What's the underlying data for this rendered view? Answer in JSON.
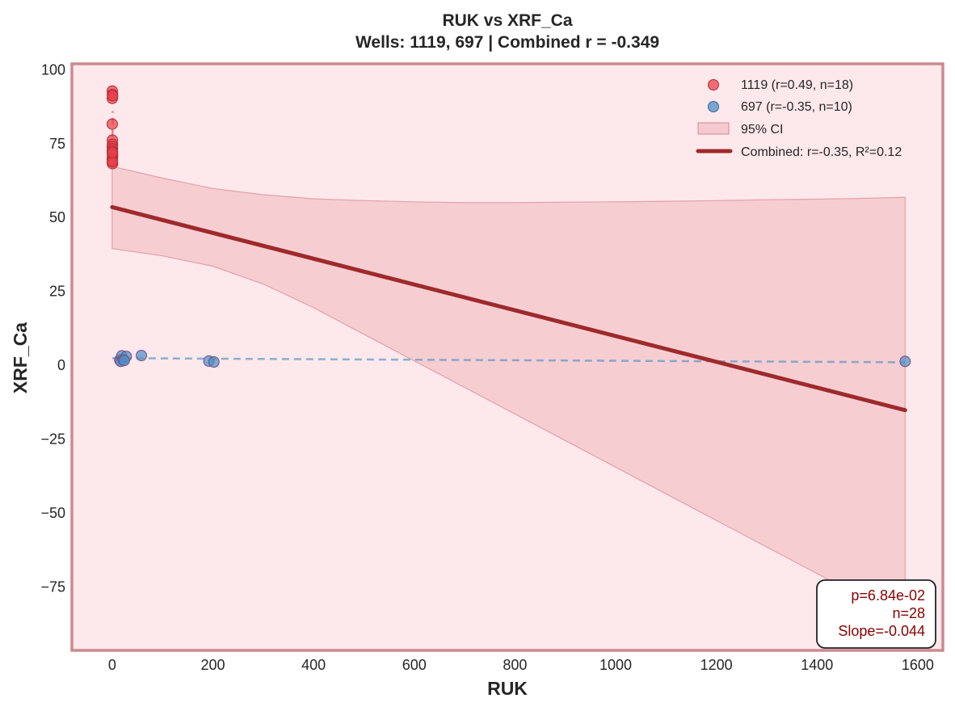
{
  "chart_data": {
    "type": "scatter",
    "title": "RUK vs XRF_Ca",
    "subtitle": "Wells: 1119, 697 | Combined r = -0.349",
    "xlabel": "RUK",
    "ylabel": "XRF_Ca",
    "xlim": [
      -80,
      1650
    ],
    "ylim": [
      -96.5,
      102
    ],
    "xticks": [
      0,
      200,
      400,
      600,
      800,
      1000,
      1200,
      1400,
      1600
    ],
    "yticks": [
      100,
      75,
      50,
      25,
      0,
      -25,
      -50,
      -75
    ],
    "ytick_labels": [
      "100",
      "75",
      "50",
      "25",
      "0",
      "−25",
      "−50",
      "−75"
    ],
    "grid": false,
    "legend_position": "top-right",
    "series": [
      {
        "name": "1119 (r=0.49, n=18)",
        "color": "#e8434b",
        "points": [
          [
            0.3,
            92.8
          ],
          [
            0.6,
            91.6
          ],
          [
            0.2,
            90.3
          ],
          [
            0.8,
            91.2
          ],
          [
            0.1,
            81.6
          ],
          [
            0.4,
            76.2
          ],
          [
            0.5,
            74.8
          ],
          [
            0.3,
            74.0
          ],
          [
            0.6,
            73.2
          ],
          [
            0.2,
            72.5
          ],
          [
            0.4,
            71.6
          ],
          [
            0.7,
            71.0
          ],
          [
            0.5,
            70.3
          ],
          [
            0.2,
            69.6
          ],
          [
            0.3,
            68.8
          ],
          [
            0.6,
            68.2
          ],
          [
            0.4,
            69.0
          ],
          [
            0.5,
            72.0
          ]
        ],
        "trend": {
          "x": [
            0,
            1.2
          ],
          "y": [
            69,
            86
          ]
        }
      },
      {
        "name": "697 (r=-0.35, n=10)",
        "color": "#4e8fc8",
        "points": [
          [
            15,
            1.8
          ],
          [
            17,
            1.3
          ],
          [
            19,
            3.2
          ],
          [
            22,
            1.9
          ],
          [
            28,
            3.0
          ],
          [
            58,
            3.3
          ],
          [
            192,
            1.4
          ],
          [
            202,
            1.1
          ],
          [
            1575,
            1.3
          ],
          [
            24,
            1.6
          ]
        ],
        "trend": {
          "x": [
            0,
            1575
          ],
          "y": [
            2.4,
            1.0
          ]
        }
      }
    ],
    "ci": {
      "name": "95% CI",
      "color": "#e9a3ac",
      "x": [
        0,
        100,
        200,
        300,
        400,
        500,
        600,
        700,
        800,
        900,
        1000,
        1100,
        1200,
        1300,
        1400,
        1500,
        1575
      ],
      "upper": [
        67.3,
        63.3,
        59.8,
        57.7,
        56.3,
        55.7,
        55.3,
        55.0,
        55.0,
        55.2,
        55.3,
        55.5,
        55.7,
        56.0,
        56.2,
        56.5,
        56.8
      ],
      "lower": [
        39.5,
        37.0,
        33.5,
        27.5,
        19.5,
        10.5,
        1.5,
        -7.5,
        -16.5,
        -25.5,
        -34.5,
        -43.5,
        -52.5,
        -61.5,
        -70.5,
        -79.5,
        -86.0
      ]
    },
    "combined_fit": {
      "name": "Combined: r=-0.35, R²=0.12",
      "color": "#9e2a2b",
      "x": [
        0,
        1575
      ],
      "y": [
        53.5,
        -15.2
      ]
    }
  },
  "stats_box": {
    "p": "p=6.84e-02",
    "n": "n=28",
    "slope": "Slope=-0.044"
  },
  "colors": {
    "plot_background": "#fde8eb",
    "frame": "#cc8a8e"
  }
}
